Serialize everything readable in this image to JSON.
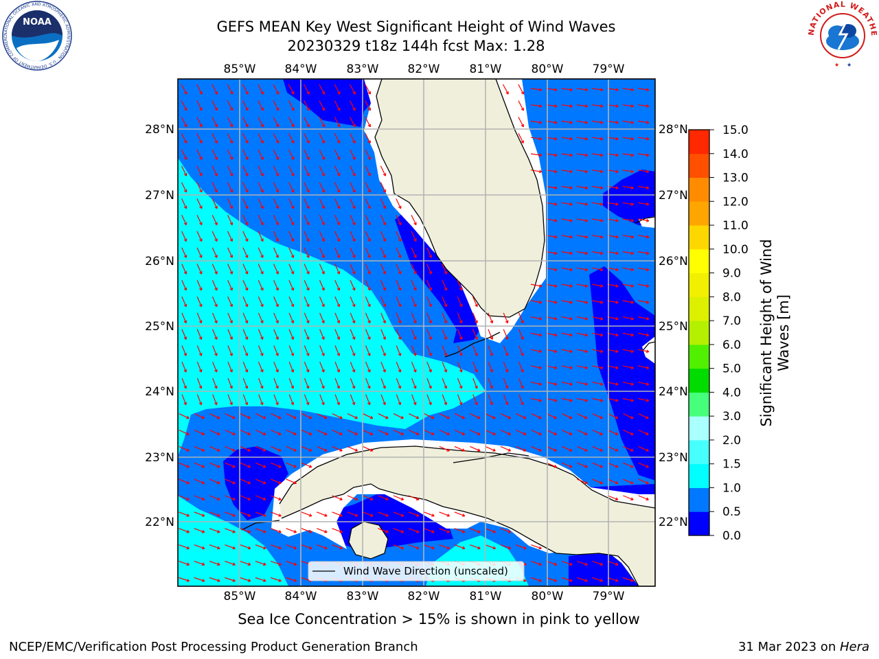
{
  "header": {
    "title_line1": "GEFS MEAN Key West Significant Height of Wind Waves",
    "title_line2": "20230329 t18z 144h fcst   Max: 1.28"
  },
  "logos": {
    "left": {
      "label": "NOAA",
      "ring_text": "NATIONAL OCEANIC AND ATMOSPHERIC ADMINISTRATION · U.S. DEPARTMENT OF COMMERCE",
      "icon": "noaa-logo-icon"
    },
    "right": {
      "ring_text": "NATIONAL WEATHER SERVICE",
      "icon": "nws-logo-icon"
    }
  },
  "map": {
    "lon_labels": [
      "85°W",
      "84°W",
      "83°W",
      "82°W",
      "81°W",
      "80°W",
      "79°W"
    ],
    "lat_labels": [
      "28°N",
      "27°N",
      "26°N",
      "25°N",
      "24°N",
      "23°N",
      "22°N"
    ],
    "legend_label": "Wind Wave Direction (unscaled)",
    "colors": {
      "land": "#efefdc",
      "arrow": "#ff0000",
      "grid": "#b4b4b4",
      "coast": "#000000"
    }
  },
  "colorbar": {
    "label": "Significant Height of Wind Waves [m]",
    "label_line1": "Significant Height of Wind",
    "label_line2": "Waves [m]",
    "ticks": [
      "0.0",
      "0.5",
      "1.0",
      "1.5",
      "2.0",
      "3.0",
      "4.0",
      "5.0",
      "6.0",
      "7.0",
      "8.0",
      "9.0",
      "10.0",
      "11.0",
      "12.0",
      "13.0",
      "14.0",
      "15.0"
    ],
    "colors": [
      "#0000ff",
      "#0078ff",
      "#00ffff",
      "#46ffff",
      "#aaffff",
      "#46ff7a",
      "#00dc00",
      "#50f000",
      "#b4f000",
      "#dcf000",
      "#f0f000",
      "#ffff00",
      "#ffd700",
      "#ffa500",
      "#ff8c00",
      "#ff5000",
      "#ff2800"
    ]
  },
  "caption": "Sea Ice Concentration > 15% is shown in pink to yellow",
  "footer": {
    "left": "NCEP/EMC/Verification Post Processing Product Generation Branch",
    "right_date": "31 Mar 2023 on ",
    "right_host": "Hera"
  }
}
